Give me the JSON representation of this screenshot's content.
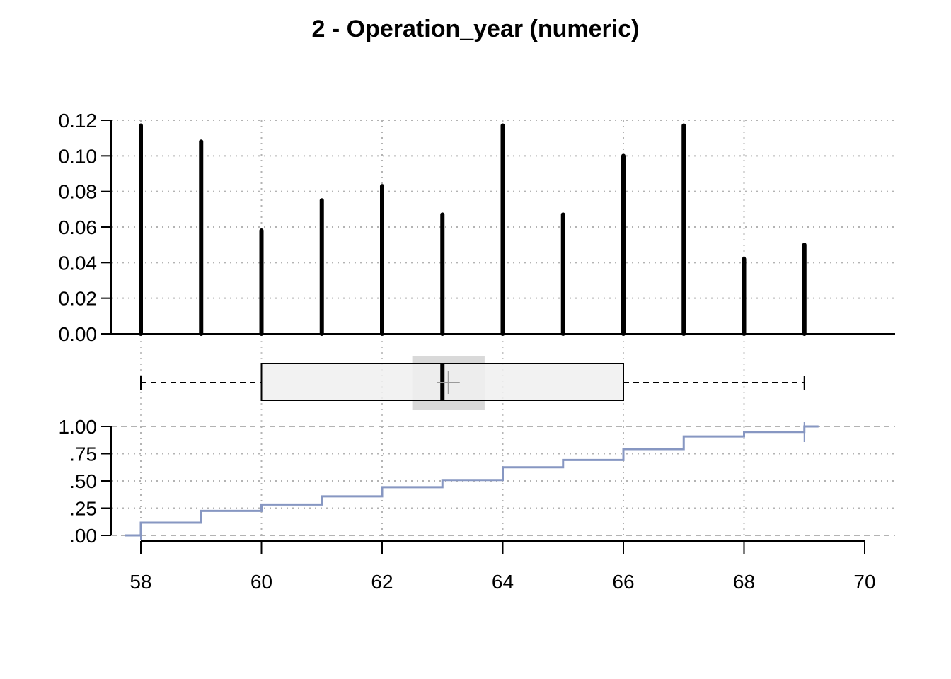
{
  "title": "2 - Operation_year (numeric)",
  "chart_data": [
    {
      "type": "bar",
      "panel": "frequency",
      "x": [
        58,
        59,
        60,
        61,
        62,
        63,
        64,
        65,
        66,
        67,
        68,
        69
      ],
      "values": [
        0.117,
        0.108,
        0.058,
        0.075,
        0.083,
        0.067,
        0.117,
        0.067,
        0.1,
        0.117,
        0.042,
        0.05
      ],
      "ylim": [
        0,
        0.12
      ],
      "yticks": [
        "0.00",
        "0.02",
        "0.04",
        "0.06",
        "0.08",
        "0.10",
        "0.12"
      ],
      "ytick_values": [
        0,
        0.02,
        0.04,
        0.06,
        0.08,
        0.1,
        0.12
      ],
      "grid": true,
      "bar_color": "#000000"
    },
    {
      "type": "boxplot",
      "panel": "box",
      "min": 58,
      "q1": 60,
      "median": 63,
      "mean": 63.1,
      "q3": 66,
      "max": 69,
      "median_ci": [
        62.5,
        63.7
      ],
      "box_fill": "#f0f0f0",
      "ci_fill": "#d9d9d9"
    },
    {
      "type": "line",
      "panel": "ecdf",
      "step": true,
      "x": [
        58,
        59,
        60,
        61,
        62,
        63,
        64,
        65,
        66,
        67,
        68,
        69
      ],
      "y": [
        0.117,
        0.225,
        0.283,
        0.358,
        0.442,
        0.508,
        0.625,
        0.692,
        0.792,
        0.908,
        0.95,
        1.0
      ],
      "ylim": [
        0,
        1
      ],
      "yticks": [
        ".00",
        ".25",
        ".50",
        ".75",
        "1.00"
      ],
      "ytick_values": [
        0,
        0.25,
        0.5,
        0.75,
        1.0
      ],
      "xlim": [
        58,
        70
      ],
      "xticks": [
        "58",
        "60",
        "62",
        "64",
        "66",
        "68",
        "70"
      ],
      "xtick_values": [
        58,
        60,
        62,
        64,
        66,
        68,
        70
      ],
      "line_color": "#8797c2",
      "grid": true
    }
  ]
}
